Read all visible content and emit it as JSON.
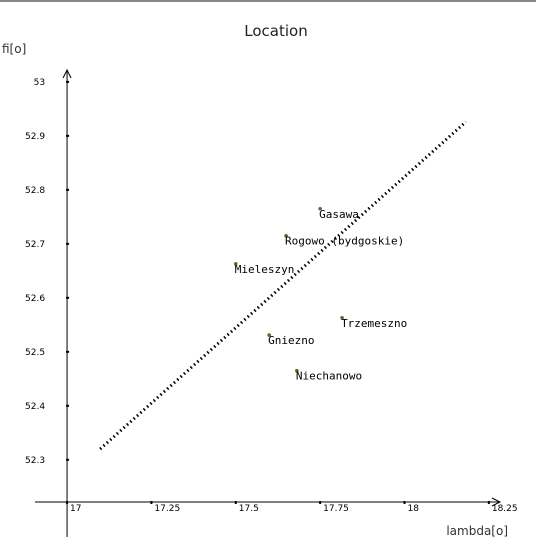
{
  "chart_data": {
    "type": "scatter",
    "title": "Location",
    "y_label": "fi[o]",
    "x_label": "lambda[o]",
    "xlim": [
      16.905,
      18.283
    ],
    "ylim": [
      52.157,
      53.022
    ],
    "xticks": [
      17,
      17.25,
      17.5,
      17.75,
      18,
      18.25
    ],
    "yticks": [
      52.3,
      52.4,
      52.5,
      52.6,
      52.7,
      52.8,
      52.9,
      53
    ],
    "points": {
      "color": "#556b2f",
      "labels": [
        "Gasawa",
        "Rogowo (bydgoskie)",
        "Mieleszyn",
        "Trzemeszno",
        "Gniezno",
        "Niechanowo"
      ],
      "x": [
        17.75,
        17.649,
        17.5,
        17.815,
        17.599,
        17.681
      ],
      "y": [
        52.765,
        52.715,
        52.663,
        52.563,
        52.531,
        52.465
      ]
    },
    "fit_line": {
      "color": "#000000",
      "x": [
        17.098,
        18.182
      ],
      "y": [
        52.32,
        52.926
      ]
    }
  }
}
